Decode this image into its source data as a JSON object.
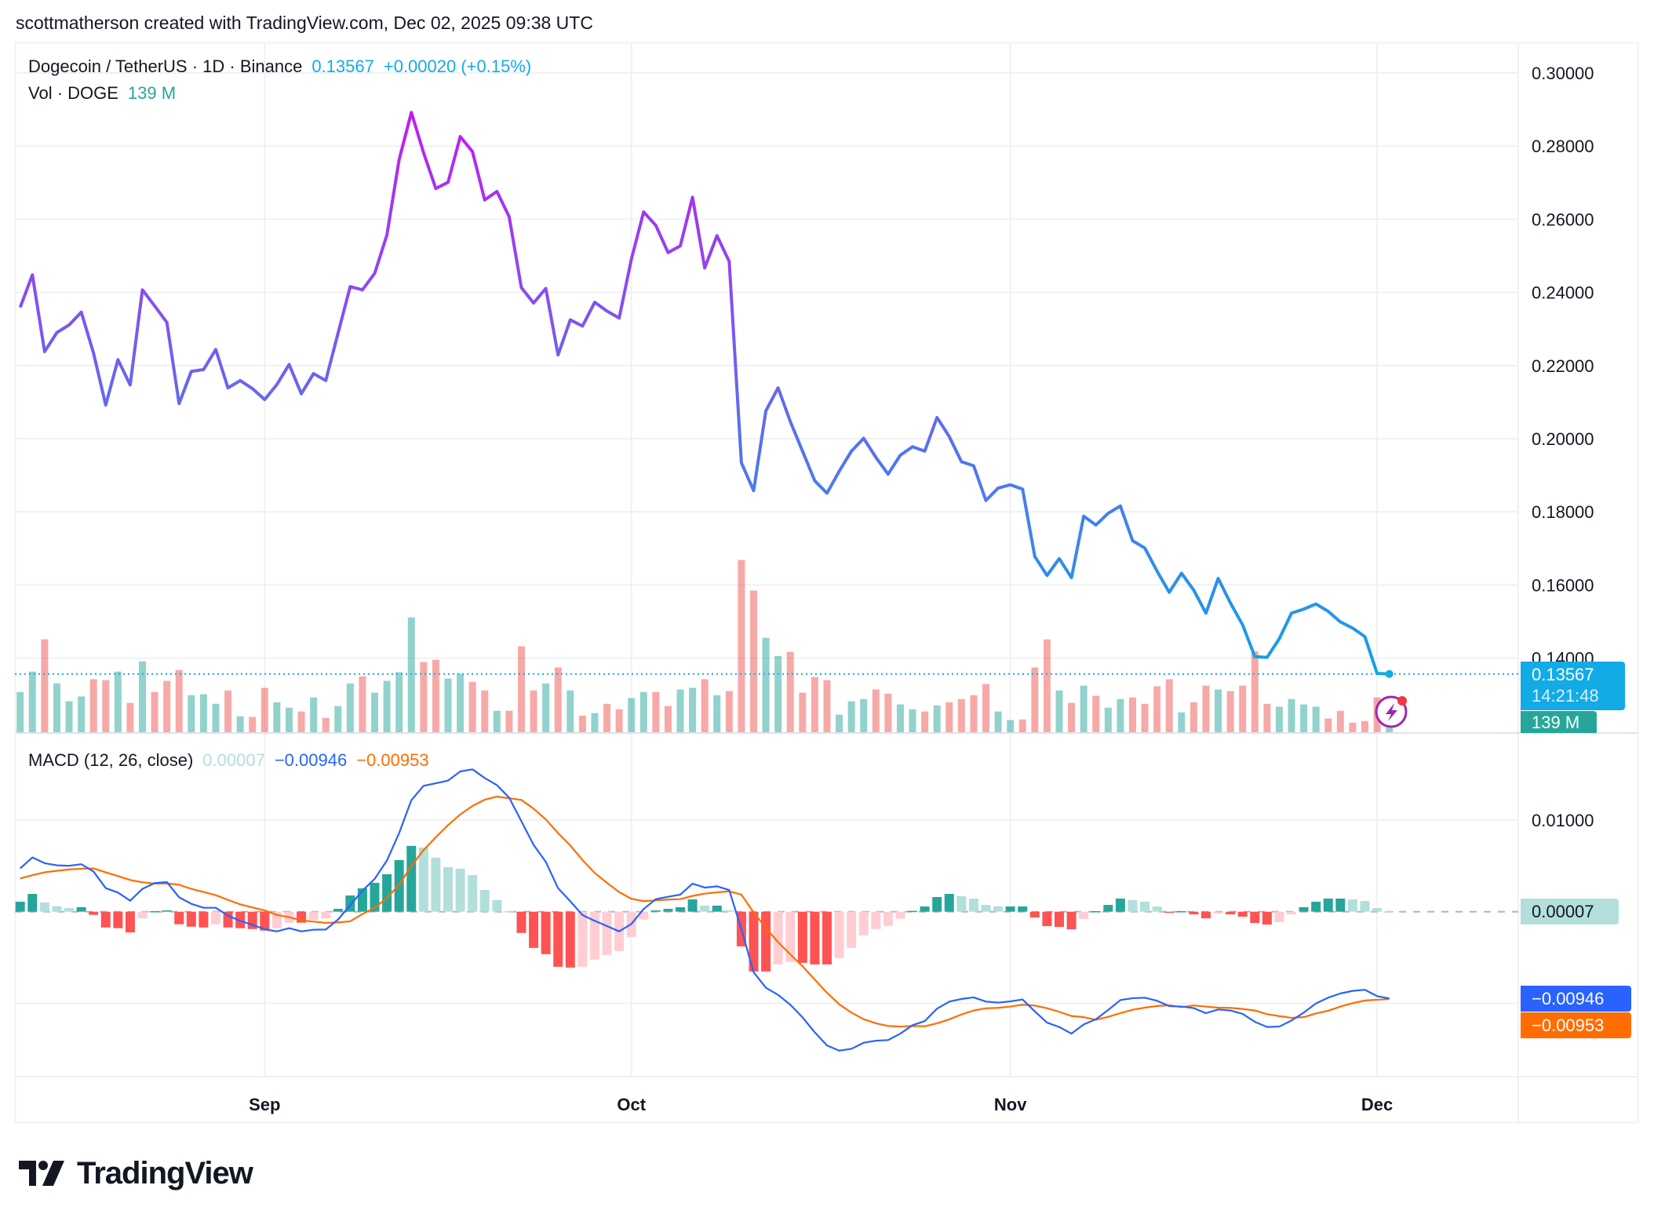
{
  "header": {
    "attribution": "scottmatherson created with TradingView.com, Dec 02, 2025 09:38 UTC"
  },
  "legend": {
    "symbol": "Dogecoin / TetherUS · 1D · Binance",
    "last": "0.13567",
    "change": "+0.00020 (+0.15%)",
    "vol_label": "Vol · DOGE",
    "vol_value": "139 M"
  },
  "macd_legend": {
    "title": "MACD (12, 26, close)",
    "hist": "0.00007",
    "macd": "−0.00946",
    "signal": "−0.00953"
  },
  "tags": {
    "price": "0.13567",
    "countdown": "14:21:48",
    "volume": "139 M",
    "hist": "0.00007",
    "macd": "−0.00946",
    "signal": "−0.00953"
  },
  "logo": {
    "text": "TradingView"
  },
  "icons": {
    "alert": "lightning-bolt-icon"
  },
  "colors": {
    "price_high": "#c21cf2",
    "price_mid": "#7060f0",
    "price_low": "#12a2e8",
    "last_price": "#12abe6",
    "vol_up": "#26a69a",
    "vol_down": "#ef5350",
    "macd": "#2962ff",
    "signal": "#ff6d00",
    "hist_up_strong": "#26a69a",
    "hist_up_weak": "#b2dfdb",
    "hist_down_strong": "#ff5252",
    "hist_down_weak": "#ffcdd2",
    "grid": "#f0f1f3",
    "text": "#131722"
  },
  "chart_data": [
    {
      "type": "line",
      "pane": "price",
      "ylim": [
        0.12,
        0.31
      ],
      "y_ticks": [
        "0.30000",
        "0.28000",
        "0.26000",
        "0.24000",
        "0.22000",
        "0.20000",
        "0.18000",
        "0.16000",
        "0.14000"
      ],
      "x_ticks": [
        {
          "label": "Sep",
          "date": "2025-09-01"
        },
        {
          "label": "Oct",
          "date": "2025-10-01"
        },
        {
          "label": "Nov",
          "date": "2025-11-01"
        },
        {
          "label": "Dec",
          "date": "2025-12-01"
        }
      ],
      "grid": true,
      "dates": [
        "2025-08-12",
        "2025-08-13",
        "2025-08-14",
        "2025-08-15",
        "2025-08-16",
        "2025-08-17",
        "2025-08-18",
        "2025-08-19",
        "2025-08-20",
        "2025-08-21",
        "2025-08-22",
        "2025-08-23",
        "2025-08-24",
        "2025-08-25",
        "2025-08-26",
        "2025-08-27",
        "2025-08-28",
        "2025-08-29",
        "2025-08-30",
        "2025-08-31",
        "2025-09-01",
        "2025-09-02",
        "2025-09-03",
        "2025-09-04",
        "2025-09-05",
        "2025-09-06",
        "2025-09-07",
        "2025-09-08",
        "2025-09-09",
        "2025-09-10",
        "2025-09-11",
        "2025-09-12",
        "2025-09-13",
        "2025-09-14",
        "2025-09-15",
        "2025-09-16",
        "2025-09-17",
        "2025-09-18",
        "2025-09-19",
        "2025-09-20",
        "2025-09-21",
        "2025-09-22",
        "2025-09-23",
        "2025-09-24",
        "2025-09-25",
        "2025-09-26",
        "2025-09-27",
        "2025-09-28",
        "2025-09-29",
        "2025-09-30",
        "2025-10-01",
        "2025-10-02",
        "2025-10-03",
        "2025-10-04",
        "2025-10-05",
        "2025-10-06",
        "2025-10-07",
        "2025-10-08",
        "2025-10-09",
        "2025-10-10",
        "2025-10-11",
        "2025-10-12",
        "2025-10-13",
        "2025-10-14",
        "2025-10-15",
        "2025-10-16",
        "2025-10-17",
        "2025-10-18",
        "2025-10-19",
        "2025-10-20",
        "2025-10-21",
        "2025-10-22",
        "2025-10-23",
        "2025-10-24",
        "2025-10-25",
        "2025-10-26",
        "2025-10-27",
        "2025-10-28",
        "2025-10-29",
        "2025-10-30",
        "2025-10-31",
        "2025-11-01",
        "2025-11-02",
        "2025-11-03",
        "2025-11-04",
        "2025-11-05",
        "2025-11-06",
        "2025-11-07",
        "2025-11-08",
        "2025-11-09",
        "2025-11-10",
        "2025-11-11",
        "2025-11-12",
        "2025-11-13",
        "2025-11-14",
        "2025-11-15",
        "2025-11-16",
        "2025-11-17",
        "2025-11-18",
        "2025-11-19",
        "2025-11-20",
        "2025-11-21",
        "2025-11-22",
        "2025-11-23",
        "2025-11-24",
        "2025-11-25",
        "2025-11-26",
        "2025-11-27",
        "2025-11-28",
        "2025-11-29",
        "2025-11-30",
        "2025-12-01",
        "2025-12-02"
      ],
      "series": [
        {
          "values": [
            0.2359,
            0.2448,
            0.2238,
            0.229,
            0.2311,
            0.2346,
            0.2234,
            0.2092,
            0.2216,
            0.2147,
            0.2407,
            0.2363,
            0.2318,
            0.2096,
            0.2184,
            0.2189,
            0.2244,
            0.2139,
            0.2159,
            0.2137,
            0.2107,
            0.2148,
            0.2203,
            0.2123,
            0.2178,
            0.2159,
            0.2288,
            0.2416,
            0.2407,
            0.2452,
            0.2557,
            0.2763,
            0.2892,
            0.2782,
            0.2684,
            0.2701,
            0.2826,
            0.2785,
            0.2653,
            0.2676,
            0.2607,
            0.2413,
            0.2371,
            0.2411,
            0.2229,
            0.2325,
            0.2308,
            0.2373,
            0.2349,
            0.233,
            0.2491,
            0.262,
            0.2583,
            0.2509,
            0.2527,
            0.266,
            0.2467,
            0.2555,
            0.2485,
            0.1934,
            0.1858,
            0.2076,
            0.2139,
            0.2047,
            0.1966,
            0.1885,
            0.1851,
            0.1911,
            0.1966,
            0.2001,
            0.1949,
            0.1903,
            0.1955,
            0.1978,
            0.1966,
            0.2058,
            0.2006,
            0.1937,
            0.1926,
            0.1831,
            0.1865,
            0.1874,
            0.1862,
            0.1678,
            0.1626,
            0.1672,
            0.162,
            0.1788,
            0.1764,
            0.1796,
            0.1816,
            0.1721,
            0.1701,
            0.1638,
            0.158,
            0.1632,
            0.1586,
            0.1523,
            0.1618,
            0.1551,
            0.1491,
            0.1404,
            0.1402,
            0.1453,
            0.1523,
            0.1534,
            0.1548,
            0.1528,
            0.1499,
            0.1482,
            0.1459,
            0.1358,
            0.13567
          ]
        }
      ],
      "last_value": 0.13567
    },
    {
      "type": "bar",
      "pane": "volume",
      "unit": "M",
      "values": [
        1260,
        1900,
        2910,
        1530,
        970,
        1120,
        1660,
        1630,
        1900,
        920,
        2220,
        1260,
        1610,
        1950,
        1160,
        1190,
        890,
        1310,
        500,
        480,
        1390,
        940,
        770,
        650,
        1090,
        450,
        820,
        1530,
        1750,
        1240,
        1610,
        1880,
        3600,
        2200,
        2270,
        1680,
        1830,
        1580,
        1310,
        670,
        670,
        2690,
        1310,
        1530,
        2030,
        1310,
        520,
        600,
        890,
        720,
        1070,
        1260,
        1260,
        820,
        1340,
        1390,
        1660,
        1160,
        1290,
        5400,
        4440,
        2960,
        2390,
        2520,
        1240,
        1730,
        1630,
        550,
        970,
        1040,
        1340,
        1210,
        870,
        720,
        650,
        840,
        940,
        1040,
        1160,
        1510,
        650,
        380,
        400,
        2030,
        2910,
        1310,
        920,
        1460,
        1140,
        770,
        1040,
        1090,
        890,
        1440,
        1660,
        620,
        940,
        1460,
        1340,
        1290,
        1460,
        2540,
        890,
        800,
        1040,
        870,
        800,
        430,
        670,
        300,
        350,
        1090,
        139
      ],
      "direction": [
        "up",
        "up",
        "down",
        "up",
        "up",
        "up",
        "down",
        "down",
        "up",
        "down",
        "up",
        "down",
        "down",
        "down",
        "up",
        "up",
        "up",
        "down",
        "up",
        "down",
        "down",
        "up",
        "up",
        "down",
        "up",
        "down",
        "up",
        "up",
        "down",
        "up",
        "up",
        "up",
        "up",
        "down",
        "down",
        "up",
        "up",
        "down",
        "down",
        "up",
        "down",
        "down",
        "down",
        "up",
        "down",
        "up",
        "down",
        "up",
        "down",
        "down",
        "up",
        "up",
        "down",
        "down",
        "up",
        "up",
        "down",
        "up",
        "down",
        "down",
        "down",
        "up",
        "up",
        "down",
        "down",
        "down",
        "down",
        "up",
        "up",
        "up",
        "down",
        "down",
        "up",
        "up",
        "down",
        "up",
        "down",
        "down",
        "down",
        "down",
        "up",
        "up",
        "down",
        "down",
        "down",
        "up",
        "down",
        "up",
        "down",
        "up",
        "up",
        "down",
        "down",
        "down",
        "down",
        "up",
        "down",
        "down",
        "up",
        "down",
        "down",
        "down",
        "down",
        "up",
        "up",
        "up",
        "up",
        "down",
        "down",
        "down",
        "down",
        "down",
        "up"
      ]
    },
    {
      "type": "line",
      "pane": "macd",
      "title": "MACD (12, 26, close)",
      "y_ticks": [
        "0.01000"
      ],
      "zero_line": true,
      "series": [
        {
          "name": "MACD",
          "values": [
            0.00472,
            0.00592,
            0.00529,
            0.00506,
            0.00501,
            0.00518,
            0.00438,
            0.00257,
            0.00209,
            0.0012,
            0.00249,
            0.00312,
            0.00323,
            0.00157,
            0.00086,
            0.00043,
            0.00043,
            -0.00043,
            -0.001,
            -0.00143,
            -0.00192,
            -0.00215,
            -0.0018,
            -0.00215,
            -0.00197,
            -0.00194,
            -0.00086,
            0.00072,
            0.00229,
            0.00358,
            0.00558,
            0.00858,
            0.01216,
            0.01373,
            0.01401,
            0.0143,
            0.0153,
            0.01553,
            0.01459,
            0.01381,
            0.01244,
            0.00987,
            0.00729,
            0.00543,
            0.00257,
            0.00114,
            -0.00037,
            -0.001,
            -0.00157,
            -0.00215,
            -0.00134,
            0.00029,
            0.00137,
            0.00163,
            0.00186,
            0.00306,
            0.00263,
            0.00277,
            0.00237,
            -0.00192,
            -0.0066,
            -0.00829,
            -0.00907,
            -0.01015,
            -0.01153,
            -0.01316,
            -0.01459,
            -0.01516,
            -0.01496,
            -0.0143,
            -0.01407,
            -0.01401,
            -0.0133,
            -0.01238,
            -0.01193,
            -0.01058,
            -0.00981,
            -0.00952,
            -0.00935,
            -0.0098,
            -0.00992,
            -0.00978,
            -0.00958,
            -0.01087,
            -0.0121,
            -0.01258,
            -0.0133,
            -0.0123,
            -0.01173,
            -0.01073,
            -0.00964,
            -0.00944,
            -0.00938,
            -0.00972,
            -0.0103,
            -0.01035,
            -0.01052,
            -0.01107,
            -0.01067,
            -0.01078,
            -0.01115,
            -0.01201,
            -0.01258,
            -0.01253,
            -0.01187,
            -0.01101,
            -0.01001,
            -0.00938,
            -0.00892,
            -0.00864,
            -0.00852,
            -0.00921,
            -0.00946
          ]
        },
        {
          "name": "Signal",
          "values": [
            0.00363,
            0.00398,
            0.00429,
            0.00446,
            0.00461,
            0.00469,
            0.00472,
            0.00429,
            0.00389,
            0.00346,
            0.00321,
            0.00306,
            0.00309,
            0.00294,
            0.00249,
            0.00215,
            0.0018,
            0.00129,
            0.0008,
            0.00046,
            0.00014,
            -0.00035,
            -0.0006,
            -0.00095,
            -0.00108,
            -0.00122,
            -0.00117,
            -0.00105,
            -0.00026,
            0.00043,
            0.00149,
            0.00295,
            0.00498,
            0.00672,
            0.00812,
            0.00944,
            0.01061,
            0.01153,
            0.01222,
            0.01255,
            0.01238,
            0.01219,
            0.01124,
            0.01006,
            0.00858,
            0.00723,
            0.00564,
            0.00423,
            0.00315,
            0.00214,
            0.00141,
            0.00115,
            0.00123,
            0.00132,
            0.00137,
            0.00172,
            0.00197,
            0.00211,
            0.00223,
            0.00186,
            -8e-05,
            -0.00177,
            -0.00332,
            -0.00466,
            -0.00595,
            -0.00741,
            -0.00884,
            -0.0101,
            -0.01101,
            -0.01173,
            -0.01218,
            -0.01247,
            -0.01253,
            -0.01247,
            -0.0125,
            -0.01218,
            -0.01175,
            -0.01121,
            -0.01078,
            -0.01054,
            -0.01049,
            -0.01035,
            -0.01015,
            -0.01024,
            -0.01053,
            -0.01092,
            -0.01138,
            -0.0115,
            -0.01179,
            -0.01147,
            -0.01107,
            -0.0107,
            -0.01047,
            -0.01029,
            -0.01021,
            -0.01041,
            -0.01023,
            -0.01035,
            -0.01047,
            -0.01049,
            -0.01061,
            -0.01078,
            -0.01118,
            -0.01139,
            -0.01158,
            -0.0115,
            -0.0111,
            -0.01081,
            -0.01035,
            -0.00998,
            -0.00969,
            -0.00961,
            -0.00953
          ]
        },
        {
          "name": "Histogram",
          "values": [
            0.00109,
            0.00194,
            0.001,
            0.0006,
            0.0004,
            0.00049,
            -0.00034,
            -0.00172,
            -0.0018,
            -0.00226,
            -0.00072,
            6e-05,
            0.00014,
            -0.00137,
            -0.00163,
            -0.00172,
            -0.00137,
            -0.00172,
            -0.0018,
            -0.00189,
            -0.00206,
            -0.0018,
            -0.0012,
            -0.0012,
            -0.00089,
            -0.00072,
            0.00031,
            0.00177,
            0.00255,
            0.00315,
            0.00409,
            0.00563,
            0.00718,
            0.00701,
            0.00589,
            0.00486,
            0.00469,
            0.004,
            0.00237,
            0.00126,
            6e-05,
            -0.00232,
            -0.00395,
            -0.00463,
            -0.00601,
            -0.00609,
            -0.00601,
            -0.00523,
            -0.00472,
            -0.00429,
            -0.00275,
            -0.00086,
            0.00014,
            0.00031,
            0.00049,
            0.00134,
            0.00066,
            0.00066,
            0.00014,
            -0.00378,
            -0.00652,
            -0.00652,
            -0.00575,
            -0.00549,
            -0.00558,
            -0.00575,
            -0.00575,
            -0.00506,
            -0.00395,
            -0.00257,
            -0.00189,
            -0.00154,
            -0.00077,
            9e-05,
            0.00057,
            0.0016,
            0.00194,
            0.00169,
            0.00143,
            0.00074,
            0.00057,
            0.00057,
            0.00057,
            -0.00063,
            -0.00157,
            -0.00166,
            -0.00192,
            -0.0008,
            6e-05,
            0.00074,
            0.00143,
            0.00126,
            0.00109,
            0.00057,
            -9e-05,
            6e-05,
            -0.00029,
            -0.00072,
            -0.0002,
            -0.00029,
            -0.00054,
            -0.00123,
            -0.0014,
            -0.00114,
            -0.00029,
            0.00049,
            0.00109,
            0.00143,
            0.00143,
            0.00134,
            0.00117,
            0.0004,
            7e-05
          ]
        }
      ]
    }
  ]
}
